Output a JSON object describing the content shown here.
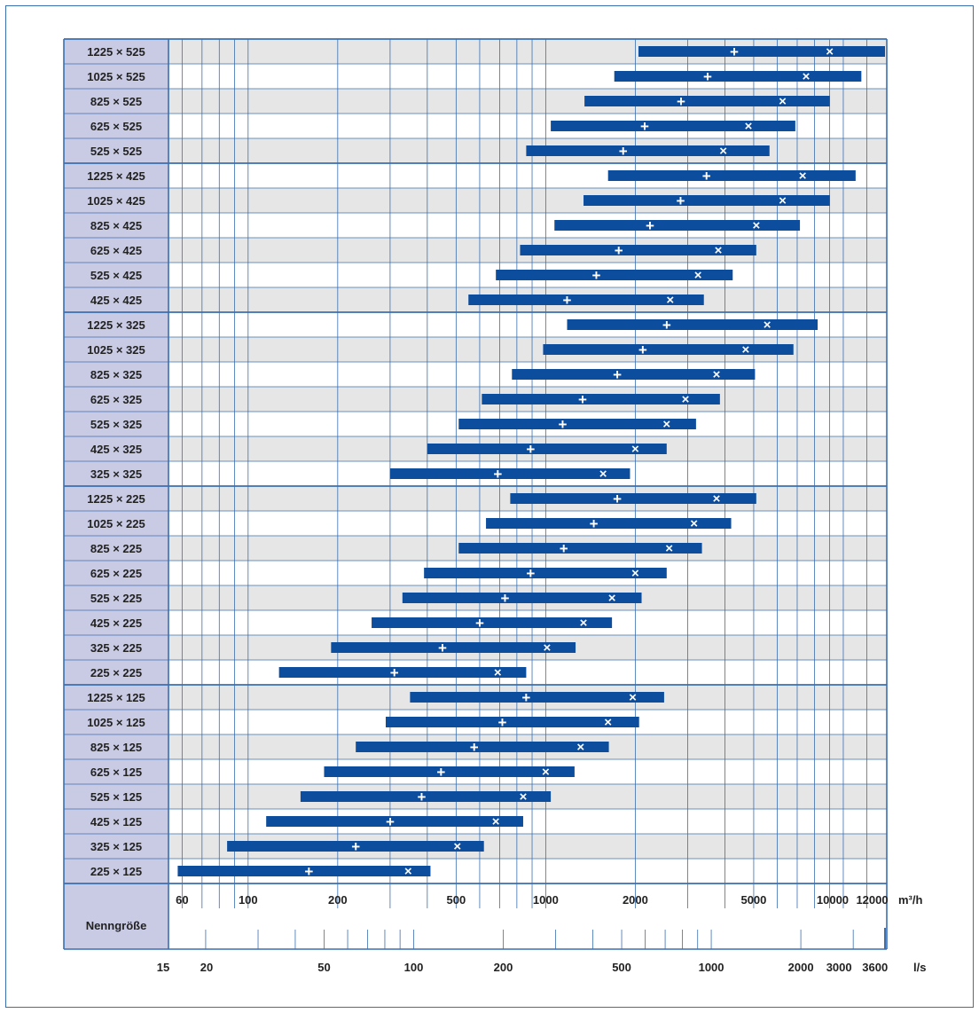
{
  "chart_data": {
    "type": "bar",
    "subtype": "floating-range",
    "y_axis_title": "Nenngröße",
    "x_axis": {
      "scale": "log",
      "unit": "m³/h",
      "domain": [
        54,
        14000
      ],
      "ticks": [
        60,
        100,
        200,
        500,
        1000,
        2000,
        5000,
        10000,
        12000
      ],
      "tick_labels": [
        "60",
        "100",
        "200",
        "500",
        "1000",
        "2000",
        "5000",
        "10000",
        "12000"
      ],
      "gridlines": [
        60,
        70,
        80,
        90,
        100,
        200,
        300,
        400,
        500,
        600,
        700,
        800,
        900,
        1000,
        2000,
        3000,
        4000,
        5000,
        6000,
        7000,
        8000,
        9000,
        10000,
        12000
      ]
    },
    "secondary_x_axis": {
      "unit": "l/s",
      "ticks": [
        15,
        20,
        50,
        100,
        200,
        500,
        1000,
        2000,
        3000,
        3600
      ],
      "tick_labels": [
        "15",
        "20",
        "50",
        "100",
        "200",
        "500",
        "1000",
        "2000",
        "3000",
        "3600"
      ],
      "minor_ticks": [
        20,
        30,
        40,
        50,
        60,
        70,
        80,
        90,
        100,
        200,
        300,
        400,
        500,
        600,
        700,
        800,
        900,
        1000,
        2000,
        3000
      ]
    },
    "groups_separator_after": [
      4,
      10,
      17,
      25
    ],
    "series_legend": {
      "plus": "+",
      "cross": "×"
    },
    "categories": [
      "1225 × 525",
      "1025 × 525",
      "825 × 525",
      "625 × 525",
      "525 × 525",
      "1225 × 425",
      "1025 × 425",
      "825 × 425",
      "625 × 425",
      "525 × 425",
      "425 × 425",
      "1225 × 325",
      "1025 × 325",
      "825 × 325",
      "625 × 325",
      "525 × 325",
      "425 × 325",
      "325 × 325",
      "1225 × 225",
      "1025 × 225",
      "825 × 225",
      "625 × 225",
      "525 × 225",
      "425 × 225",
      "325 × 225",
      "225 × 225",
      "1225 × 125",
      "1025 × 125",
      "825 × 125",
      "625 × 125",
      "525 × 125",
      "425 × 125",
      "325 × 125",
      "225 × 125"
    ],
    "ranges": [
      {
        "min": 2050,
        "max": 14000,
        "plus": 4300,
        "cross": 9000
      },
      {
        "min": 1700,
        "max": 11500,
        "plus": 3500,
        "cross": 7500
      },
      {
        "min": 1350,
        "max": 9000,
        "plus": 2850,
        "cross": 6250
      },
      {
        "min": 1040,
        "max": 6900,
        "plus": 2150,
        "cross": 4800
      },
      {
        "min": 860,
        "max": 5650,
        "plus": 1820,
        "cross": 3950
      },
      {
        "min": 1620,
        "max": 11000,
        "plus": 3470,
        "cross": 7300
      },
      {
        "min": 1340,
        "max": 9000,
        "plus": 2840,
        "cross": 6250
      },
      {
        "min": 1070,
        "max": 7150,
        "plus": 2240,
        "cross": 5100
      },
      {
        "min": 820,
        "max": 5100,
        "plus": 1760,
        "cross": 3800
      },
      {
        "min": 680,
        "max": 4250,
        "plus": 1480,
        "cross": 3250
      },
      {
        "min": 550,
        "max": 3400,
        "plus": 1180,
        "cross": 2620
      },
      {
        "min": 1180,
        "max": 8200,
        "plus": 2550,
        "cross": 5550
      },
      {
        "min": 980,
        "max": 6800,
        "plus": 2120,
        "cross": 4700
      },
      {
        "min": 770,
        "max": 5050,
        "plus": 1740,
        "cross": 3750
      },
      {
        "min": 610,
        "max": 3850,
        "plus": 1330,
        "cross": 2950
      },
      {
        "min": 510,
        "max": 3200,
        "plus": 1140,
        "cross": 2550
      },
      {
        "min": 400,
        "max": 2550,
        "plus": 890,
        "cross": 2000
      },
      {
        "min": 300,
        "max": 1920,
        "plus": 690,
        "cross": 1560
      },
      {
        "min": 760,
        "max": 5100,
        "plus": 1740,
        "cross": 3750
      },
      {
        "min": 630,
        "max": 4200,
        "plus": 1450,
        "cross": 3150
      },
      {
        "min": 510,
        "max": 3350,
        "plus": 1150,
        "cross": 2600
      },
      {
        "min": 390,
        "max": 2550,
        "plus": 890,
        "cross": 2000
      },
      {
        "min": 330,
        "max": 2100,
        "plus": 730,
        "cross": 1670
      },
      {
        "min": 260,
        "max": 1670,
        "plus": 600,
        "cross": 1340
      },
      {
        "min": 190,
        "max": 1260,
        "plus": 450,
        "cross": 1010
      },
      {
        "min": 127,
        "max": 860,
        "plus": 310,
        "cross": 690
      },
      {
        "min": 350,
        "max": 2500,
        "plus": 860,
        "cross": 1960
      },
      {
        "min": 290,
        "max": 2060,
        "plus": 715,
        "cross": 1620
      },
      {
        "min": 230,
        "max": 1630,
        "plus": 575,
        "cross": 1310
      },
      {
        "min": 180,
        "max": 1250,
        "plus": 445,
        "cross": 1000
      },
      {
        "min": 150,
        "max": 1040,
        "plus": 383,
        "cross": 840
      },
      {
        "min": 115,
        "max": 840,
        "plus": 300,
        "cross": 680
      },
      {
        "min": 85,
        "max": 620,
        "plus": 230,
        "cross": 505
      },
      {
        "min": 58,
        "max": 410,
        "plus": 160,
        "cross": 345
      }
    ]
  },
  "colors": {
    "bar": "#0d4d9e",
    "grid": "#3a6fb0",
    "label_bg": "#c9cbe5",
    "band": "#e6e6e6",
    "frame": "#3a6fb0"
  }
}
